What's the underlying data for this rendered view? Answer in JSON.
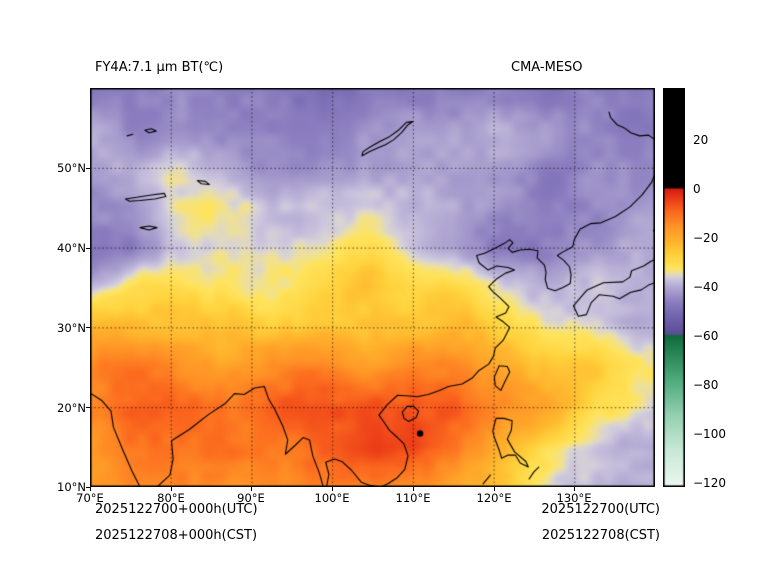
{
  "header": {
    "title_left": "FY4A:7.1 μm BT(℃)",
    "title_right": "CMA-MESO"
  },
  "axes": {
    "lat_ticks": [
      "50°N",
      "40°N",
      "30°N",
      "20°N",
      "10°N"
    ],
    "lon_ticks": [
      "70°E",
      "80°E",
      "90°E",
      "100°E",
      "110°E",
      "120°E",
      "130°E"
    ]
  },
  "colorbar": {
    "tick_labels": [
      "20",
      "0",
      "−20",
      "−40",
      "−60",
      "−80",
      "−100",
      "−120"
    ]
  },
  "footer": {
    "init_utc": "2025122700+000h(UTC)",
    "init_cst": "2025122708+000h(CST)",
    "valid_utc": "2025122700(UTC)",
    "valid_cst": "2025122708(CST)"
  },
  "chart_data": {
    "type": "heatmap",
    "title": "FY4A:7.1 μm BT(℃)",
    "model": "CMA-MESO",
    "units": "°C",
    "legend_position": "right",
    "lon_range": [
      70,
      140
    ],
    "lat_range": [
      10,
      60
    ],
    "grid_lon_step": 5,
    "grid_lat_step": 5,
    "grid_lons": [
      80,
      90,
      100,
      110,
      120,
      130
    ],
    "grid_lats": [
      20,
      30,
      40,
      50
    ],
    "colorbar_ticks": [
      20,
      0,
      -20,
      -40,
      -60,
      -80,
      -100,
      -120
    ],
    "colorbar_range": [
      -121.6,
      41.3
    ],
    "colormap_stops": [
      [
        -122,
        "#edf8f3"
      ],
      [
        -106,
        "#c6e8d6"
      ],
      [
        -92,
        "#93cfb0"
      ],
      [
        -78,
        "#4fab7c"
      ],
      [
        -64,
        "#1e7c4c"
      ],
      [
        -60,
        "#146840"
      ],
      [
        -59,
        "#5c4e97"
      ],
      [
        -53,
        "#6e60ab"
      ],
      [
        -46,
        "#8c7fc0"
      ],
      [
        -40,
        "#b2a9d3"
      ],
      [
        -37,
        "#c9c3dd"
      ],
      [
        -35.5,
        "#d9d4d4"
      ],
      [
        -34,
        "#efe196"
      ],
      [
        -32,
        "#ffe35c"
      ],
      [
        -27,
        "#ffd23c"
      ],
      [
        -21,
        "#ffb12c"
      ],
      [
        -15,
        "#ff9326"
      ],
      [
        -9,
        "#fb681e"
      ],
      [
        -3,
        "#e93517"
      ],
      [
        0,
        "#d02114"
      ],
      [
        0.8,
        "#000000"
      ],
      [
        45,
        "#000000"
      ]
    ],
    "bt_grid_c": [
      [
        -44,
        -45,
        -46,
        -47,
        -48,
        -50,
        -50,
        -48,
        -46,
        -45,
        -44,
        -45,
        -46,
        -47,
        -46
      ],
      [
        -42,
        -43,
        -45,
        -46,
        -47,
        -48,
        -47,
        -46,
        -44,
        -43,
        -42,
        -43,
        -45,
        -46,
        -45
      ],
      [
        -40,
        -38,
        -37,
        -40,
        -44,
        -46,
        -45,
        -43,
        -42,
        -42,
        -43,
        -44,
        -46,
        -45,
        -44
      ],
      [
        -44,
        -42,
        -36,
        -34,
        -35,
        -36,
        -37,
        -36,
        -38,
        -40,
        -44,
        -46,
        -45,
        -44,
        -43
      ],
      [
        -48,
        -46,
        -38,
        -35,
        -34,
        -34,
        -33,
        -32,
        -35,
        -42,
        -48,
        -47,
        -44,
        -42,
        -41
      ],
      [
        -36,
        -30,
        -27,
        -31,
        -33,
        -31,
        -27,
        -25,
        -26,
        -29,
        -36,
        -38,
        -38,
        -39,
        -40
      ],
      [
        -22,
        -21,
        -23,
        -25,
        -24,
        -23,
        -22,
        -22,
        -23,
        -24,
        -26,
        -30,
        -33,
        -36,
        -38
      ],
      [
        -15,
        -13,
        -14,
        -16,
        -15,
        -14,
        -15,
        -16,
        -15,
        -16,
        -18,
        -22,
        -26,
        -30,
        -33
      ],
      [
        -12,
        -10,
        -9,
        -10,
        -11,
        -10,
        -9,
        -7,
        -5,
        -10,
        -14,
        -18,
        -24,
        -30,
        -34
      ],
      [
        -14,
        -12,
        -11,
        -12,
        -13,
        -12,
        -10,
        -6,
        -2,
        -12,
        -18,
        -26,
        -34,
        -40,
        -42
      ],
      [
        -16,
        -14,
        -13,
        -14,
        -15,
        -14,
        -13,
        -12,
        -14,
        -18,
        -24,
        -30,
        -36,
        -40,
        -38
      ]
    ],
    "hotspots": [
      {
        "lon": 110.9,
        "lat": 16.7
      }
    ],
    "coastlines": [
      [
        [
          70,
          21.8
        ],
        [
          71.5,
          20.8
        ],
        [
          72.6,
          19.5
        ],
        [
          72.9,
          17.5
        ],
        [
          74,
          14.8
        ],
        [
          75.2,
          12
        ],
        [
          76.2,
          10
        ]
      ],
      [
        [
          78.3,
          10
        ],
        [
          79.9,
          11.5
        ],
        [
          80.3,
          13.5
        ],
        [
          80.1,
          15.8
        ],
        [
          82.3,
          17.2
        ],
        [
          84.7,
          19.1
        ],
        [
          86.8,
          20.5
        ],
        [
          87.9,
          21.7
        ],
        [
          89.1,
          21.6
        ],
        [
          90.4,
          22.4
        ],
        [
          91.6,
          22.6
        ],
        [
          92.1,
          21.1
        ],
        [
          92.9,
          19.7
        ],
        [
          93.9,
          17.6
        ],
        [
          94.5,
          15.9
        ],
        [
          94.2,
          14.1
        ],
        [
          95.4,
          15.2
        ],
        [
          96.4,
          16.2
        ],
        [
          97.2,
          15.9
        ],
        [
          97.6,
          13.9
        ],
        [
          98.4,
          11.8
        ],
        [
          98.9,
          10
        ]
      ],
      [
        [
          99.3,
          10
        ],
        [
          99.6,
          11.6
        ],
        [
          99.2,
          13.1
        ],
        [
          100.3,
          13.5
        ],
        [
          101.2,
          13.2
        ],
        [
          102.4,
          12.1
        ],
        [
          103.6,
          10.6
        ],
        [
          104.7,
          10.2
        ],
        [
          106,
          10
        ],
        [
          106.9,
          10.4
        ],
        [
          108.1,
          11.2
        ],
        [
          109,
          12.2
        ],
        [
          109.4,
          13.9
        ],
        [
          108.9,
          15.4
        ],
        [
          108.1,
          16.2
        ],
        [
          107.1,
          17.1
        ],
        [
          106.3,
          18.3
        ],
        [
          105.8,
          19
        ],
        [
          106.8,
          20.3
        ],
        [
          108.1,
          21.5
        ],
        [
          109.6,
          21.4
        ],
        [
          110.5,
          21.3
        ],
        [
          111.9,
          21.6
        ],
        [
          113.3,
          22.1
        ],
        [
          114.4,
          22.6
        ],
        [
          116.1,
          22.9
        ],
        [
          117.4,
          23.7
        ],
        [
          118.2,
          24.6
        ],
        [
          119.4,
          25.4
        ],
        [
          120,
          26.4
        ],
        [
          120.2,
          27.4
        ],
        [
          121.2,
          28.4
        ],
        [
          122,
          30
        ],
        [
          121.2,
          30.7
        ],
        [
          120.3,
          31.3
        ],
        [
          121.5,
          31.8
        ],
        [
          121.9,
          32.6
        ],
        [
          120.9,
          33.6
        ],
        [
          119.8,
          34.6
        ],
        [
          119.4,
          35.1
        ],
        [
          120.4,
          36.1
        ],
        [
          121.5,
          36.8
        ],
        [
          122.6,
          37.2
        ],
        [
          121.8,
          37.5
        ],
        [
          120.4,
          37.7
        ],
        [
          119.3,
          37.2
        ],
        [
          118.2,
          38.1
        ],
        [
          117.9,
          39
        ],
        [
          118.9,
          39.3
        ],
        [
          120.1,
          39.9
        ],
        [
          121.3,
          40.5
        ],
        [
          122,
          41
        ],
        [
          122.4,
          40.6
        ],
        [
          121.8,
          39.9
        ],
        [
          122.3,
          39.4
        ],
        [
          123.3,
          39.7
        ],
        [
          124.4,
          39.8
        ],
        [
          125.5,
          39.6
        ],
        [
          125.4,
          38.7
        ],
        [
          126.3,
          37.8
        ],
        [
          126.5,
          36.9
        ],
        [
          126.4,
          36
        ],
        [
          126.7,
          34.9
        ],
        [
          127.6,
          34.6
        ],
        [
          128.6,
          35
        ],
        [
          129.5,
          35.5
        ],
        [
          129.6,
          36.6
        ],
        [
          129.4,
          37.6
        ],
        [
          128.7,
          38.4
        ],
        [
          127.9,
          39
        ],
        [
          128.5,
          39.4
        ],
        [
          129.8,
          40.1
        ],
        [
          130,
          41
        ],
        [
          130.7,
          42.3
        ],
        [
          132,
          43
        ],
        [
          133.3,
          43.1
        ],
        [
          135.1,
          43.9
        ],
        [
          136.9,
          45.1
        ],
        [
          138.4,
          46.6
        ],
        [
          139.6,
          48.2
        ],
        [
          140,
          49.3
        ]
      ],
      [
        [
          129.9,
          32.7
        ],
        [
          130.5,
          31.4
        ],
        [
          131.5,
          31.6
        ],
        [
          132.1,
          33.1
        ],
        [
          133.1,
          34.1
        ],
        [
          134.8,
          33.9
        ],
        [
          135.6,
          33.6
        ],
        [
          137,
          34.4
        ],
        [
          138.3,
          34.7
        ],
        [
          139.2,
          35.3
        ],
        [
          140,
          35.6
        ],
        [
          140,
          38.5
        ],
        [
          139.5,
          38.3
        ],
        [
          138.6,
          37.7
        ],
        [
          137.1,
          37.1
        ],
        [
          136.9,
          36.3
        ],
        [
          136,
          35.7
        ],
        [
          133.6,
          35.6
        ],
        [
          131.6,
          34.7
        ],
        [
          131,
          34
        ],
        [
          129.9,
          32.7
        ]
      ],
      [
        [
          139.8,
          42.1
        ],
        [
          140,
          42.4
        ]
      ],
      [
        [
          120.7,
          25.2
        ],
        [
          121.7,
          25.1
        ],
        [
          122,
          24.4
        ],
        [
          121.4,
          23.2
        ],
        [
          120.9,
          22.1
        ],
        [
          120.2,
          22.7
        ],
        [
          120.1,
          23.8
        ],
        [
          120.7,
          25.2
        ]
      ],
      [
        [
          108.7,
          19.4
        ],
        [
          109.3,
          20.1
        ],
        [
          110.1,
          20.1
        ],
        [
          110.7,
          19.5
        ],
        [
          110.4,
          18.7
        ],
        [
          109.5,
          18.2
        ],
        [
          108.9,
          18.6
        ],
        [
          108.7,
          19.4
        ]
      ],
      [
        [
          120.1,
          16.2
        ],
        [
          119.9,
          17
        ],
        [
          120.3,
          18.6
        ],
        [
          121.3,
          18.6
        ],
        [
          122.3,
          18.3
        ],
        [
          122.2,
          17.1
        ],
        [
          121.7,
          16
        ],
        [
          122.6,
          14.4
        ],
        [
          124,
          13.2
        ],
        [
          124.3,
          12.5
        ],
        [
          123.3,
          13
        ],
        [
          122.7,
          14
        ],
        [
          121.8,
          14
        ],
        [
          121,
          13.6
        ],
        [
          120.7,
          14.6
        ],
        [
          120.1,
          16.2
        ]
      ],
      [
        [
          124.4,
          11
        ],
        [
          125,
          11.9
        ],
        [
          125.6,
          12.5
        ]
      ],
      [
        [
          119.6,
          11.5
        ],
        [
          118.7,
          10.4
        ]
      ],
      [
        [
          74.4,
          46.1
        ],
        [
          75.8,
          46.3
        ],
        [
          77.6,
          46.6
        ],
        [
          79.2,
          46.8
        ],
        [
          79.4,
          46.4
        ],
        [
          78,
          46.1
        ],
        [
          76.2,
          45.9
        ],
        [
          74.9,
          45.8
        ],
        [
          74.4,
          46.1
        ]
      ],
      [
        [
          76.2,
          42.5
        ],
        [
          77.3,
          42.7
        ],
        [
          78.3,
          42.5
        ],
        [
          77.3,
          42.2
        ],
        [
          76.2,
          42.5
        ]
      ],
      [
        [
          83.3,
          48.4
        ],
        [
          84.3,
          48.3
        ],
        [
          84.8,
          47.9
        ],
        [
          83.8,
          48
        ],
        [
          83.3,
          48.4
        ]
      ],
      [
        [
          76.8,
          54.7
        ],
        [
          77.6,
          54.9
        ],
        [
          78.2,
          54.6
        ],
        [
          77.3,
          54.4
        ],
        [
          76.8,
          54.7
        ]
      ],
      [
        [
          74.6,
          54
        ],
        [
          75.3,
          54.2
        ]
      ],
      [
        [
          103.7,
          51.5
        ],
        [
          104.6,
          52
        ],
        [
          105.7,
          52.5
        ],
        [
          106.6,
          52.9
        ],
        [
          107.6,
          53.5
        ],
        [
          108.6,
          54.4
        ],
        [
          109.4,
          55.4
        ],
        [
          110,
          55.8
        ],
        [
          109.2,
          55.7
        ],
        [
          108.2,
          54.7
        ],
        [
          107.1,
          53.9
        ],
        [
          105.9,
          53.3
        ],
        [
          104.7,
          52.6
        ],
        [
          103.8,
          52
        ],
        [
          103.7,
          51.5
        ]
      ],
      [
        [
          140,
          53.5
        ],
        [
          139.2,
          54.1
        ],
        [
          138.1,
          54
        ],
        [
          137,
          54.4
        ],
        [
          136.2,
          55
        ],
        [
          135.3,
          55.4
        ],
        [
          134.5,
          56.3
        ],
        [
          134.3,
          57
        ]
      ]
    ]
  }
}
